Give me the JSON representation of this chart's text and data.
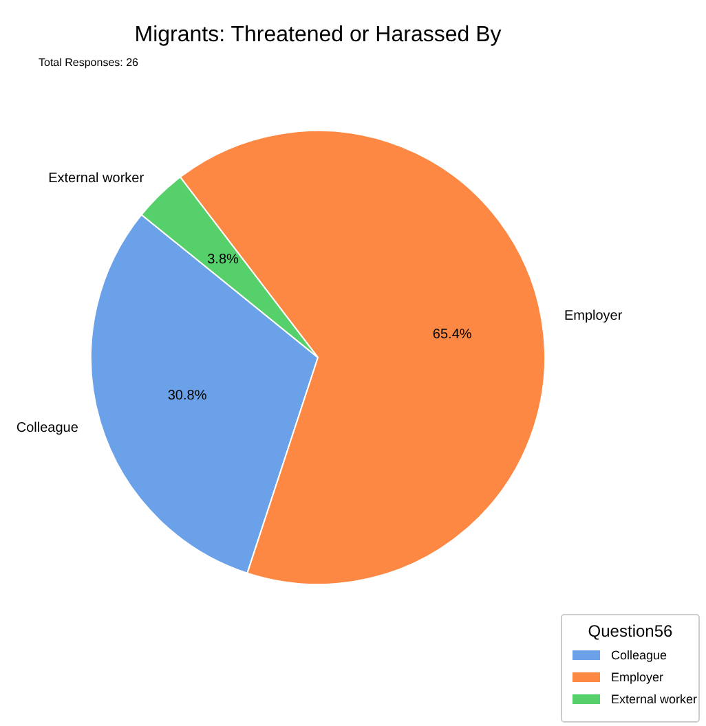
{
  "chart_data": {
    "type": "pie",
    "title": "Migrants: Threatened or Harassed By",
    "annotations": [
      "Total Responses: 26"
    ],
    "categories": [
      "Colleague",
      "Employer",
      "External worker"
    ],
    "values": [
      30.8,
      65.4,
      3.8
    ],
    "colors": [
      "#6aa1e8",
      "#fd8843",
      "#56d06a"
    ],
    "value_labels": [
      "30.8%",
      "65.4%",
      "3.8%"
    ],
    "legend_title": "Question56",
    "legend": "bottom right"
  }
}
